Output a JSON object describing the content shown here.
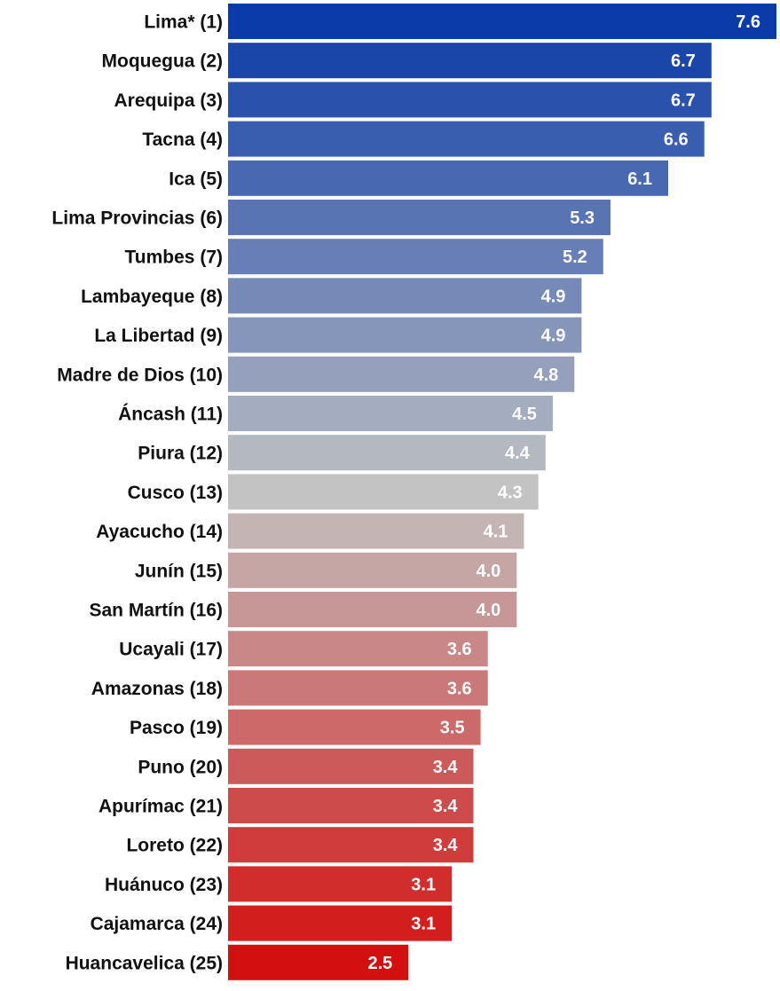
{
  "chart_data": {
    "type": "bar",
    "orientation": "horizontal",
    "categories": [
      "Lima* (1)",
      "Moquegua (2)",
      "Arequipa (3)",
      "Tacna (4)",
      "Ica (5)",
      "Lima Provincias (6)",
      "Tumbes (7)",
      "Lambayeque (8)",
      "La Libertad (9)",
      "Madre de Dios (10)",
      "Áncash (11)",
      "Piura (12)",
      "Cusco (13)",
      "Ayacucho (14)",
      "Junín (15)",
      "San Martín (16)",
      "Ucayali (17)",
      "Amazonas (18)",
      "Pasco (19)",
      "Puno (20)",
      "Apurímac (21)",
      "Loreto (22)",
      "Huánuco (23)",
      "Cajamarca (24)",
      "Huancavelica (25)"
    ],
    "values": [
      7.6,
      6.7,
      6.7,
      6.6,
      6.1,
      5.3,
      5.2,
      4.9,
      4.9,
      4.8,
      4.5,
      4.4,
      4.3,
      4.1,
      4.0,
      4.0,
      3.6,
      3.6,
      3.5,
      3.4,
      3.4,
      3.4,
      3.1,
      3.1,
      2.5
    ],
    "value_labels": [
      "7.6",
      "6.7",
      "6.7",
      "6.6",
      "6.1",
      "5.3",
      "5.2",
      "4.9",
      "4.9",
      "4.8",
      "4.5",
      "4.4",
      "4.3",
      "4.1",
      "4.0",
      "4.0",
      "3.6",
      "3.6",
      "3.5",
      "3.4",
      "3.4",
      "3.4",
      "3.1",
      "3.1",
      "2.5"
    ],
    "xlim": [
      0,
      7.6
    ],
    "grid": false,
    "legend": "none",
    "color_scale": {
      "high": "#0b3ba8",
      "mid": "#c3c3c3",
      "low": "#d40f0f"
    },
    "title": "",
    "xlabel": "",
    "ylabel": ""
  }
}
